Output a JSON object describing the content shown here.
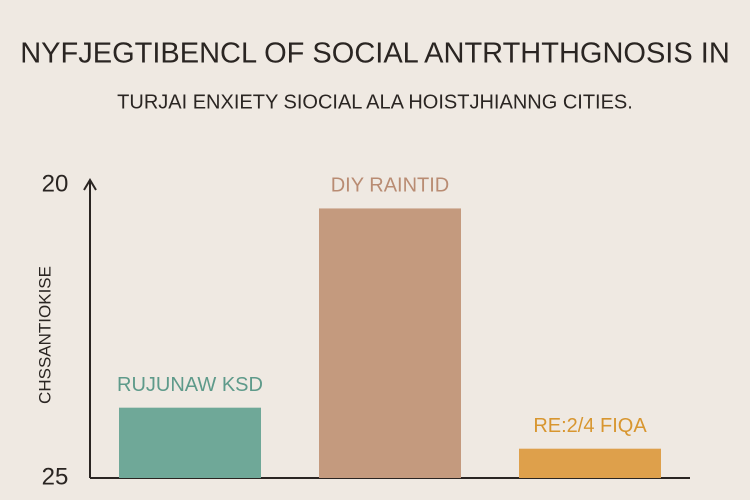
{
  "chart_data": {
    "type": "bar",
    "title": "NYFJEGTIBENCL OF SOCIAL ANTRTHTHGNOSIS IN",
    "subtitle": "TURJAI ENXIETY SIOCIAL ALA HOISTJHIANNG CITIES.",
    "y_label": "CHSSANTIOKISE",
    "categories": [
      null,
      null,
      null
    ],
    "values": [
      23.8,
      20.4,
      24.5
    ],
    "bar_labels": [
      "RUJUNAW KSD",
      "DIY RAINTID",
      "RE:2/4 FIQA"
    ],
    "colors": [
      "#6fa898",
      "#c49a7e",
      "#dea04b"
    ],
    "label_colors": [
      "#5e9a8a",
      "#b98c73",
      "#d8962f"
    ],
    "ylim": [
      25,
      20
    ],
    "yticks": [
      20,
      25
    ],
    "grid": false
  }
}
